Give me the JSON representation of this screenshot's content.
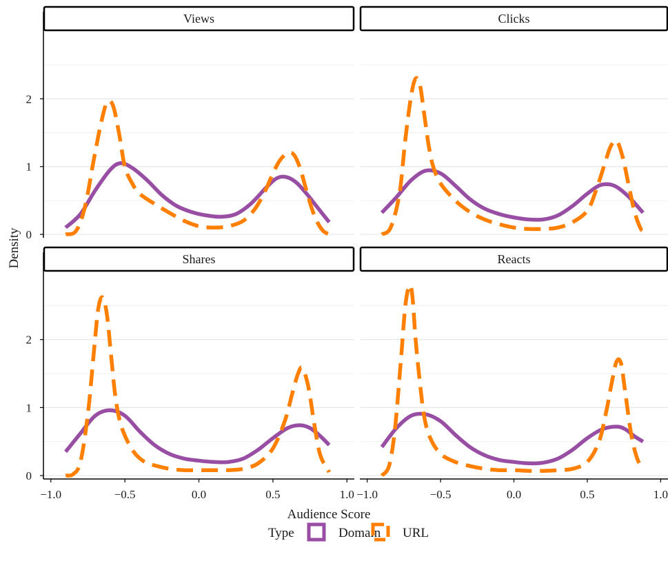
{
  "chart_data": {
    "type": "line",
    "kind": "density",
    "layout": "facet-grid-2x2",
    "xlabel": "Audience Score",
    "ylabel": "Density",
    "xlim": [
      -1.05,
      1.05
    ],
    "ylim": [
      -0.05,
      3.0
    ],
    "x_ticks": [
      -1.0,
      -0.5,
      0.0,
      0.5,
      1.0
    ],
    "x_tick_labels": [
      "−1.0",
      "−0.5",
      "0.0",
      "0.5",
      "1.0"
    ],
    "y_ticks": [
      0,
      1,
      2
    ],
    "y_tick_labels": [
      "0",
      "1",
      "2"
    ],
    "grid": "horizontal-major",
    "legend": {
      "title": "Type",
      "position": "bottom",
      "entries": [
        "Domain",
        "URL"
      ]
    },
    "series_styles": [
      {
        "name": "Domain",
        "color": "#984ea3",
        "dash": "solid"
      },
      {
        "name": "URL",
        "color": "#ff7f00",
        "dash": "dashed"
      }
    ],
    "panels": [
      {
        "title": "Views",
        "series": [
          {
            "name": "Domain",
            "x": [
              -0.9,
              -0.8,
              -0.7,
              -0.6,
              -0.53,
              -0.45,
              -0.35,
              -0.25,
              -0.15,
              -0.05,
              0.05,
              0.15,
              0.25,
              0.35,
              0.45,
              0.52,
              0.58,
              0.65,
              0.72,
              0.8,
              0.88
            ],
            "y": [
              0.1,
              0.3,
              0.65,
              0.95,
              1.05,
              0.98,
              0.8,
              0.58,
              0.42,
              0.33,
              0.28,
              0.26,
              0.3,
              0.45,
              0.68,
              0.82,
              0.85,
              0.78,
              0.62,
              0.4,
              0.18
            ]
          },
          {
            "name": "URL",
            "x": [
              -0.9,
              -0.83,
              -0.77,
              -0.71,
              -0.66,
              -0.62,
              -0.58,
              -0.54,
              -0.5,
              -0.45,
              -0.4,
              -0.3,
              -0.2,
              -0.1,
              0.0,
              0.1,
              0.2,
              0.3,
              0.38,
              0.45,
              0.5,
              0.55,
              0.6,
              0.64,
              0.68,
              0.72,
              0.76,
              0.8,
              0.84,
              0.88
            ],
            "y": [
              0.0,
              0.05,
              0.4,
              1.1,
              1.65,
              1.95,
              1.9,
              1.5,
              1.0,
              0.75,
              0.6,
              0.45,
              0.32,
              0.2,
              0.12,
              0.1,
              0.12,
              0.2,
              0.38,
              0.65,
              0.9,
              1.1,
              1.2,
              1.18,
              1.0,
              0.7,
              0.4,
              0.18,
              0.05,
              0.0
            ]
          }
        ]
      },
      {
        "title": "Clicks",
        "series": [
          {
            "name": "Domain",
            "x": [
              -0.9,
              -0.8,
              -0.7,
              -0.6,
              -0.5,
              -0.4,
              -0.3,
              -0.2,
              -0.1,
              0.0,
              0.1,
              0.2,
              0.3,
              0.4,
              0.5,
              0.58,
              0.64,
              0.7,
              0.78,
              0.88
            ],
            "y": [
              0.32,
              0.55,
              0.8,
              0.94,
              0.9,
              0.72,
              0.52,
              0.38,
              0.3,
              0.25,
              0.22,
              0.22,
              0.28,
              0.42,
              0.6,
              0.72,
              0.74,
              0.7,
              0.56,
              0.32
            ]
          },
          {
            "name": "URL",
            "x": [
              -0.9,
              -0.84,
              -0.78,
              -0.74,
              -0.7,
              -0.67,
              -0.64,
              -0.61,
              -0.58,
              -0.55,
              -0.5,
              -0.4,
              -0.3,
              -0.2,
              -0.1,
              0.0,
              0.1,
              0.2,
              0.3,
              0.4,
              0.5,
              0.56,
              0.62,
              0.66,
              0.7,
              0.74,
              0.78,
              0.82,
              0.86,
              0.88
            ],
            "y": [
              0.0,
              0.1,
              0.6,
              1.4,
              2.05,
              2.3,
              2.2,
              1.75,
              1.3,
              1.0,
              0.75,
              0.5,
              0.33,
              0.22,
              0.15,
              0.1,
              0.08,
              0.08,
              0.1,
              0.18,
              0.35,
              0.65,
              1.05,
              1.3,
              1.38,
              1.15,
              0.75,
              0.35,
              0.1,
              0.05
            ]
          }
        ]
      },
      {
        "title": "Shares",
        "series": [
          {
            "name": "Domain",
            "x": [
              -0.9,
              -0.8,
              -0.7,
              -0.6,
              -0.5,
              -0.4,
              -0.3,
              -0.2,
              -0.1,
              0.0,
              0.1,
              0.2,
              0.3,
              0.4,
              0.5,
              0.6,
              0.68,
              0.75,
              0.82,
              0.88
            ],
            "y": [
              0.35,
              0.62,
              0.88,
              0.96,
              0.88,
              0.65,
              0.45,
              0.32,
              0.25,
              0.22,
              0.2,
              0.2,
              0.25,
              0.38,
              0.55,
              0.7,
              0.74,
              0.7,
              0.58,
              0.45
            ]
          },
          {
            "name": "URL",
            "x": [
              -0.9,
              -0.85,
              -0.8,
              -0.75,
              -0.71,
              -0.68,
              -0.65,
              -0.62,
              -0.59,
              -0.56,
              -0.52,
              -0.45,
              -0.38,
              -0.3,
              -0.2,
              -0.1,
              0.0,
              0.1,
              0.2,
              0.3,
              0.4,
              0.5,
              0.58,
              0.63,
              0.67,
              0.7,
              0.74,
              0.78,
              0.82,
              0.88
            ],
            "y": [
              0.0,
              0.02,
              0.2,
              0.9,
              1.8,
              2.45,
              2.62,
              2.35,
              1.7,
              1.1,
              0.7,
              0.38,
              0.22,
              0.15,
              0.1,
              0.08,
              0.08,
              0.08,
              0.08,
              0.1,
              0.18,
              0.4,
              0.8,
              1.2,
              1.5,
              1.58,
              1.3,
              0.75,
              0.3,
              0.05
            ]
          }
        ]
      },
      {
        "title": "Reacts",
        "series": [
          {
            "name": "Domain",
            "x": [
              -0.9,
              -0.8,
              -0.7,
              -0.6,
              -0.5,
              -0.4,
              -0.3,
              -0.2,
              -0.1,
              0.0,
              0.1,
              0.2,
              0.3,
              0.4,
              0.5,
              0.6,
              0.7,
              0.76,
              0.82,
              0.88
            ],
            "y": [
              0.42,
              0.7,
              0.88,
              0.9,
              0.8,
              0.6,
              0.42,
              0.3,
              0.23,
              0.2,
              0.18,
              0.19,
              0.25,
              0.38,
              0.55,
              0.68,
              0.72,
              0.68,
              0.58,
              0.5
            ]
          },
          {
            "name": "URL",
            "x": [
              -0.9,
              -0.85,
              -0.81,
              -0.77,
              -0.74,
              -0.71,
              -0.69,
              -0.67,
              -0.64,
              -0.61,
              -0.57,
              -0.5,
              -0.4,
              -0.3,
              -0.2,
              -0.1,
              0.0,
              0.1,
              0.2,
              0.3,
              0.4,
              0.5,
              0.58,
              0.63,
              0.67,
              0.7,
              0.73,
              0.76,
              0.8,
              0.84,
              0.88
            ],
            "y": [
              0.0,
              0.15,
              0.7,
              1.7,
              2.5,
              2.8,
              2.6,
              2.0,
              1.35,
              0.85,
              0.55,
              0.32,
              0.2,
              0.14,
              0.1,
              0.08,
              0.08,
              0.07,
              0.07,
              0.08,
              0.1,
              0.2,
              0.5,
              0.95,
              1.4,
              1.68,
              1.65,
              1.2,
              0.6,
              0.25,
              0.1
            ]
          }
        ]
      }
    ]
  }
}
